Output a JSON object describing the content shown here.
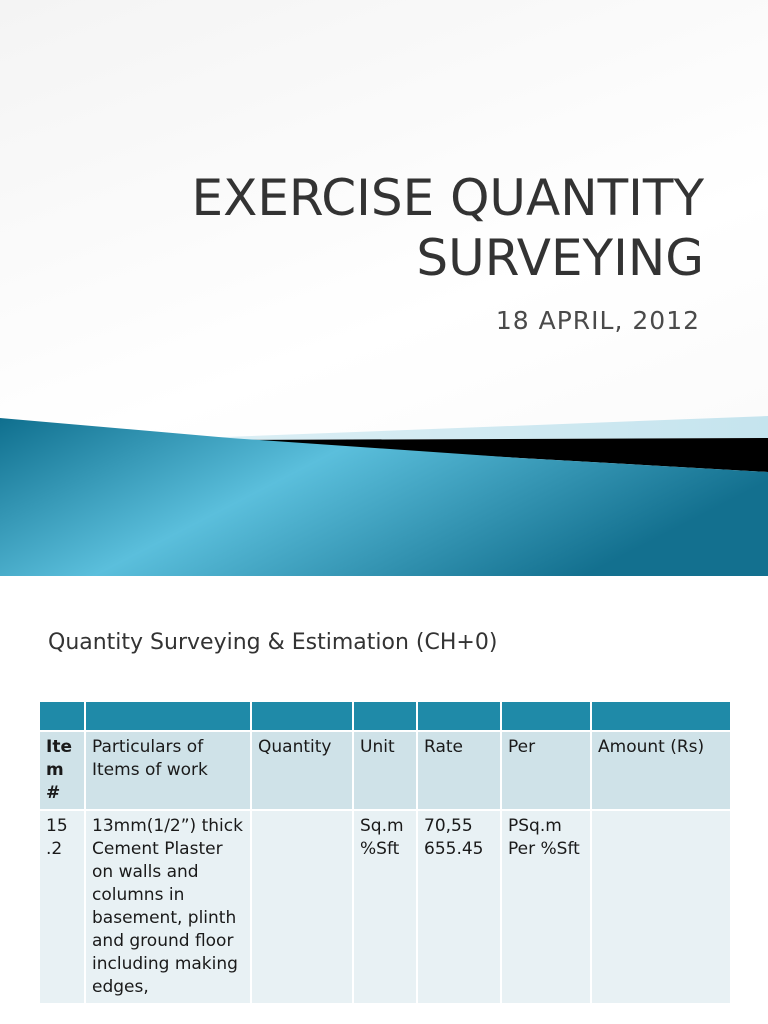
{
  "slide1": {
    "title_line1": "EXERCISE QUANTITY",
    "title_line2": "SURVEYING",
    "subtitle": "18 APRIL, 2012",
    "colors": {
      "banner_blue": "#1f8aa8",
      "banner_light": "#5cc0dc",
      "banner_black": "#000000"
    }
  },
  "slide2": {
    "title": "Quantity Surveying & Estimation (CH+0)",
    "table": {
      "header_color": "#1f8aa8",
      "columns": [
        "Ite m #",
        "Particulars of Items of work",
        "Quantity",
        "Unit",
        "Rate",
        "Per",
        "Amount (Rs)"
      ],
      "rows": [
        {
          "item": "15 .2",
          "particulars": "13mm(1/2”) thick Cement Plaster on walls and columns in basement, plinth and ground floor including making edges,",
          "quantity": "",
          "unit": "Sq.m %Sft",
          "rate": "70,55 655.45",
          "per": "PSq.m Per %Sft",
          "amount": ""
        }
      ]
    }
  }
}
